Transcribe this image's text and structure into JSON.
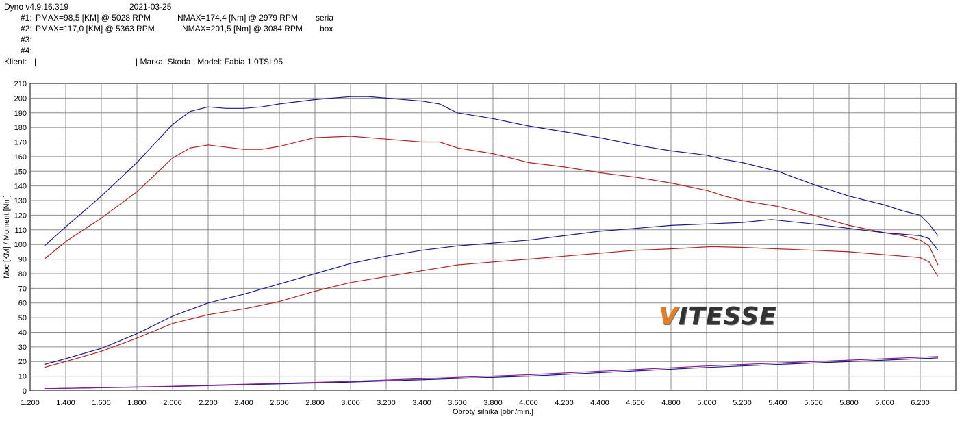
{
  "header": {
    "software": "Dyno v4.9.16.319",
    "date": "2021-03-25",
    "runs": [
      {
        "id": "#1:",
        "pmax": "PMAX=98,5 [KM] @ 5028 RPM",
        "nmax": "NMAX=174,4 [Nm] @ 2979 RPM",
        "label": "seria"
      },
      {
        "id": "#2:",
        "pmax": "PMAX=117,0 [KM] @ 5363 RPM",
        "nmax": "NMAX=201,5 [Nm] @ 3084 RPM",
        "label": "box"
      },
      {
        "id": "#3:",
        "pmax": "",
        "nmax": "",
        "label": ""
      },
      {
        "id": "#4:",
        "pmax": "",
        "nmax": "",
        "label": ""
      }
    ],
    "client_label": "Klient:",
    "client_sep": "|",
    "marka_model": "| Marka: Skoda | Model: Fabia 1.0TSI 95"
  },
  "logo": {
    "first": "V",
    "rest": "ITESSE"
  },
  "chart_data": {
    "type": "line",
    "xlabel": "Obroty silnika [obr./min.]",
    "ylabel": "Moc [KM] / Moment [Nm]",
    "xlim": [
      1200,
      6400
    ],
    "ylim": [
      0,
      210
    ],
    "x_ticks": [
      "1.200",
      "1.400",
      "1.600",
      "1.800",
      "2.000",
      "2.200",
      "2.400",
      "2.600",
      "2.800",
      "3.000",
      "3.200",
      "3.400",
      "3.600",
      "3.800",
      "4.000",
      "4.200",
      "4.400",
      "4.600",
      "4.800",
      "5.000",
      "5.200",
      "5.400",
      "5.600",
      "5.800",
      "6.000",
      "6.200"
    ],
    "y_ticks": [
      0,
      10,
      20,
      30,
      40,
      50,
      60,
      70,
      80,
      90,
      100,
      110,
      120,
      130,
      140,
      150,
      160,
      170,
      180,
      190,
      200,
      210
    ],
    "grid": true,
    "series": [
      {
        "name": "box",
        "color": "#1a1a8c",
        "kind": "torque",
        "x": [
          1280,
          1400,
          1600,
          1800,
          2000,
          2100,
          2200,
          2300,
          2400,
          2500,
          2600,
          2800,
          3000,
          3100,
          3200,
          3400,
          3500,
          3600,
          3800,
          4000,
          4200,
          4400,
          4600,
          4800,
          5000,
          5100,
          5200,
          5400,
          5600,
          5800,
          6000,
          6100,
          6200,
          6250,
          6300
        ],
        "y": [
          99,
          112,
          133,
          156,
          182,
          191,
          194,
          193,
          193,
          194,
          196,
          199,
          201,
          201,
          200,
          198,
          196,
          190,
          186,
          181,
          177,
          173,
          168,
          164,
          161,
          158,
          156,
          150,
          141,
          133,
          127,
          123,
          120,
          114,
          106
        ]
      },
      {
        "name": "seria",
        "color": "#b22222",
        "kind": "torque",
        "x": [
          1280,
          1400,
          1600,
          1800,
          2000,
          2100,
          2200,
          2400,
          2500,
          2600,
          2800,
          3000,
          3200,
          3400,
          3500,
          3600,
          3800,
          4000,
          4200,
          4400,
          4600,
          4800,
          5000,
          5100,
          5200,
          5400,
          5600,
          5800,
          6000,
          6100,
          6200,
          6250,
          6300
        ],
        "y": [
          90,
          102,
          118,
          136,
          159,
          166,
          168,
          165,
          165,
          167,
          173,
          174,
          172,
          170,
          170,
          166,
          162,
          156,
          153,
          149,
          146,
          142,
          137,
          133,
          130,
          126,
          120,
          113,
          108,
          106,
          103,
          99,
          86
        ]
      },
      {
        "name": "box",
        "color": "#1a1a8c",
        "kind": "power",
        "x": [
          1280,
          1400,
          1600,
          1800,
          2000,
          2200,
          2400,
          2600,
          2800,
          3000,
          3200,
          3400,
          3600,
          3800,
          4000,
          4200,
          4400,
          4600,
          4800,
          5000,
          5200,
          5363,
          5600,
          5800,
          6000,
          6200,
          6250,
          6300
        ],
        "y": [
          18,
          22,
          29,
          39,
          51,
          60,
          66,
          73,
          80,
          87,
          92,
          96,
          99,
          101,
          103,
          106,
          109,
          111,
          113,
          114,
          115,
          117,
          114,
          111,
          108,
          106,
          104,
          96
        ]
      },
      {
        "name": "seria",
        "color": "#b22222",
        "kind": "power",
        "x": [
          1280,
          1400,
          1600,
          1800,
          2000,
          2200,
          2400,
          2600,
          2800,
          3000,
          3200,
          3400,
          3600,
          3800,
          4000,
          4200,
          4400,
          4600,
          4800,
          5028,
          5200,
          5400,
          5600,
          5800,
          6000,
          6200,
          6250,
          6300
        ],
        "y": [
          16,
          20,
          27,
          36,
          46,
          52,
          56,
          61,
          68,
          74,
          78,
          82,
          86,
          88,
          90,
          92,
          94,
          96,
          97,
          98.5,
          98,
          97,
          96,
          95,
          93,
          91,
          88,
          78
        ]
      },
      {
        "name": "box",
        "color": "#1a1a8c",
        "kind": "loss",
        "x": [
          1280,
          2000,
          3000,
          4000,
          5000,
          6000,
          6300
        ],
        "y": [
          1.5,
          3,
          6,
          10,
          16,
          21,
          22.5
        ]
      },
      {
        "name": "seria",
        "color": "#8b1a8b",
        "kind": "loss",
        "x": [
          1280,
          2000,
          3000,
          4000,
          5000,
          6000,
          6300
        ],
        "y": [
          1.5,
          3.2,
          6.5,
          11,
          17,
          22,
          23.5
        ]
      }
    ]
  }
}
